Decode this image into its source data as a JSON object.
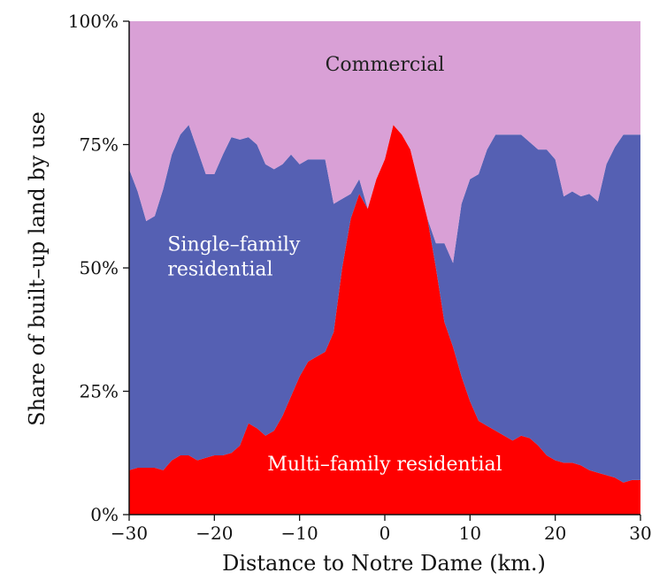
{
  "chart_data": {
    "type": "area",
    "stacked": true,
    "xlabel": "Distance to Notre Dame (km.)",
    "ylabel": "Share of built–up land by use",
    "xlim": [
      -30,
      30
    ],
    "ylim": [
      0,
      100
    ],
    "xticks": [
      -30,
      -20,
      -10,
      0,
      10,
      20,
      30
    ],
    "xtick_labels": [
      "−30",
      "−20",
      "−10",
      "0",
      "10",
      "20",
      "30"
    ],
    "yticks": [
      0,
      25,
      50,
      75,
      100
    ],
    "ytick_labels": [
      "0%",
      "25%",
      "50%",
      "75%",
      "100%"
    ],
    "grid": false,
    "legend": "none (series labelled inside the plot)",
    "x": [
      -30,
      -29,
      -28,
      -27,
      -26,
      -25,
      -24,
      -23,
      -22,
      -21,
      -20,
      -19,
      -18,
      -17,
      -16,
      -15,
      -14,
      -13,
      -12,
      -11,
      -10,
      -9,
      -8,
      -7,
      -6,
      -5,
      -4,
      -3,
      -2,
      -1,
      0,
      1,
      2,
      3,
      4,
      5,
      6,
      7,
      8,
      9,
      10,
      11,
      12,
      13,
      14,
      15,
      16,
      17,
      18,
      19,
      20,
      21,
      22,
      23,
      24,
      25,
      26,
      27,
      28,
      29,
      30
    ],
    "series": [
      {
        "name": "Multi–family residential",
        "color": "#ff0000",
        "values": [
          9.0,
          9.5,
          9.5,
          9.5,
          9.0,
          11.0,
          12.0,
          12.0,
          11.0,
          11.5,
          12.0,
          12.0,
          12.5,
          14.0,
          18.5,
          17.5,
          16.0,
          17.0,
          20.0,
          24.0,
          28.0,
          31.0,
          32.0,
          33.0,
          37.0,
          50.0,
          60.0,
          65.0,
          62.0,
          68.0,
          72.0,
          79.0,
          77.0,
          74.0,
          67.0,
          60.0,
          50.0,
          39.0,
          34.0,
          28.0,
          23.0,
          19.0,
          18.0,
          17.0,
          16.0,
          15.0,
          16.0,
          15.5,
          14.0,
          12.0,
          11.0,
          10.5,
          10.5,
          10.0,
          9.0,
          8.5,
          8.0,
          7.5,
          6.5,
          7.0,
          7.0
        ]
      },
      {
        "name": "Single–family residential",
        "color": "#5560b3",
        "values": [
          61.0,
          56.0,
          50.0,
          51.0,
          57.0,
          62.0,
          65.0,
          67.0,
          63.0,
          57.5,
          57.0,
          61.0,
          64.0,
          62.0,
          58.0,
          57.5,
          55.0,
          53.0,
          51.0,
          49.0,
          43.0,
          41.0,
          40.0,
          39.0,
          26.0,
          14.0,
          5.0,
          3.0,
          0.0,
          0.0,
          0.0,
          0.0,
          0.0,
          0.0,
          0.0,
          0.0,
          5.0,
          16.0,
          17.0,
          35.0,
          45.0,
          50.0,
          56.0,
          60.0,
          61.0,
          62.0,
          61.0,
          60.0,
          60.0,
          62.0,
          61.0,
          54.0,
          55.0,
          54.5,
          56.0,
          55.0,
          63.0,
          67.0,
          70.5,
          70.0,
          70.0
        ]
      },
      {
        "name": "Commercial",
        "color": "#d9a0d6",
        "values": [
          30.0,
          34.5,
          40.5,
          39.5,
          34.0,
          27.0,
          23.0,
          21.0,
          26.0,
          31.0,
          31.0,
          27.0,
          23.5,
          24.0,
          23.5,
          25.0,
          29.0,
          30.0,
          29.0,
          27.0,
          29.0,
          28.0,
          28.0,
          28.0,
          37.0,
          36.0,
          35.0,
          32.0,
          38.0,
          32.0,
          28.0,
          21.0,
          23.0,
          26.0,
          33.0,
          40.0,
          45.0,
          45.0,
          49.0,
          37.0,
          32.0,
          31.0,
          26.0,
          23.0,
          23.0,
          23.0,
          23.0,
          24.5,
          26.0,
          26.0,
          28.0,
          35.5,
          34.5,
          35.5,
          35.0,
          36.5,
          29.0,
          25.5,
          23.0,
          23.0,
          23.0
        ]
      }
    ],
    "annotations": [
      {
        "text": "Commercial",
        "x": 0,
        "y": 90,
        "color": "#222222"
      },
      {
        "text": "Single–family",
        "x": -25.5,
        "y": 53.5,
        "color": "#ffffff",
        "anchor": "start"
      },
      {
        "text": "residential",
        "x": -25.5,
        "y": 48.5,
        "color": "#ffffff",
        "anchor": "start"
      },
      {
        "text": "Multi–family residential",
        "x": 0,
        "y": 9,
        "color": "#ffffff"
      }
    ]
  }
}
